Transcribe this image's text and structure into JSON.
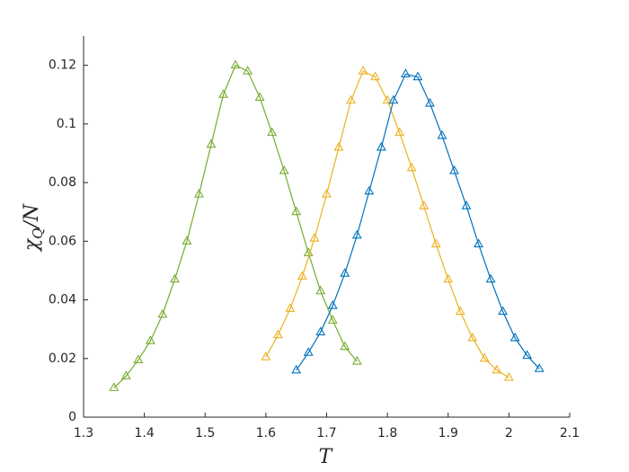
{
  "chart_data": {
    "type": "line",
    "xlabel": "T",
    "ylabel": [
      "χ",
      "Q",
      "/N"
    ],
    "xlim": [
      1.3,
      2.1
    ],
    "xticks": [
      1.3,
      1.4,
      1.5,
      1.6,
      1.7,
      1.8,
      1.9,
      2,
      2.1
    ],
    "ylim": [
      0,
      0.13
    ],
    "yticks": [
      0,
      0.02,
      0.04,
      0.06,
      0.08,
      0.1,
      0.12
    ],
    "series": [
      {
        "color": "#77ac30",
        "x": [
          1.35,
          1.37,
          1.39,
          1.41,
          1.43,
          1.45,
          1.47,
          1.49,
          1.51,
          1.53,
          1.55,
          1.57,
          1.59,
          1.61,
          1.63,
          1.65,
          1.67,
          1.69,
          1.71,
          1.73,
          1.75
        ],
        "values": [
          0.01,
          0.014,
          0.0195,
          0.026,
          0.035,
          0.047,
          0.06,
          0.076,
          0.093,
          0.11,
          0.12,
          0.118,
          0.109,
          0.097,
          0.084,
          0.07,
          0.056,
          0.043,
          0.033,
          0.024,
          0.019
        ]
      },
      {
        "color": "#edb120",
        "x": [
          1.6,
          1.62,
          1.64,
          1.66,
          1.68,
          1.7,
          1.72,
          1.74,
          1.76,
          1.78,
          1.8,
          1.82,
          1.84,
          1.86,
          1.88,
          1.9,
          1.92,
          1.94,
          1.96,
          1.98,
          2.0
        ],
        "values": [
          0.0205,
          0.028,
          0.037,
          0.048,
          0.061,
          0.076,
          0.092,
          0.108,
          0.118,
          0.116,
          0.108,
          0.097,
          0.085,
          0.072,
          0.059,
          0.047,
          0.036,
          0.027,
          0.02,
          0.016,
          0.0135
        ]
      },
      {
        "color": "#0072bd",
        "x": [
          1.65,
          1.67,
          1.69,
          1.71,
          1.73,
          1.75,
          1.77,
          1.79,
          1.81,
          1.83,
          1.85,
          1.87,
          1.89,
          1.91,
          1.93,
          1.95,
          1.97,
          1.99,
          2.01,
          2.03,
          2.05
        ],
        "values": [
          0.016,
          0.022,
          0.029,
          0.038,
          0.049,
          0.062,
          0.077,
          0.092,
          0.108,
          0.117,
          0.116,
          0.107,
          0.096,
          0.084,
          0.072,
          0.059,
          0.047,
          0.036,
          0.027,
          0.021,
          0.0165
        ]
      }
    ]
  }
}
